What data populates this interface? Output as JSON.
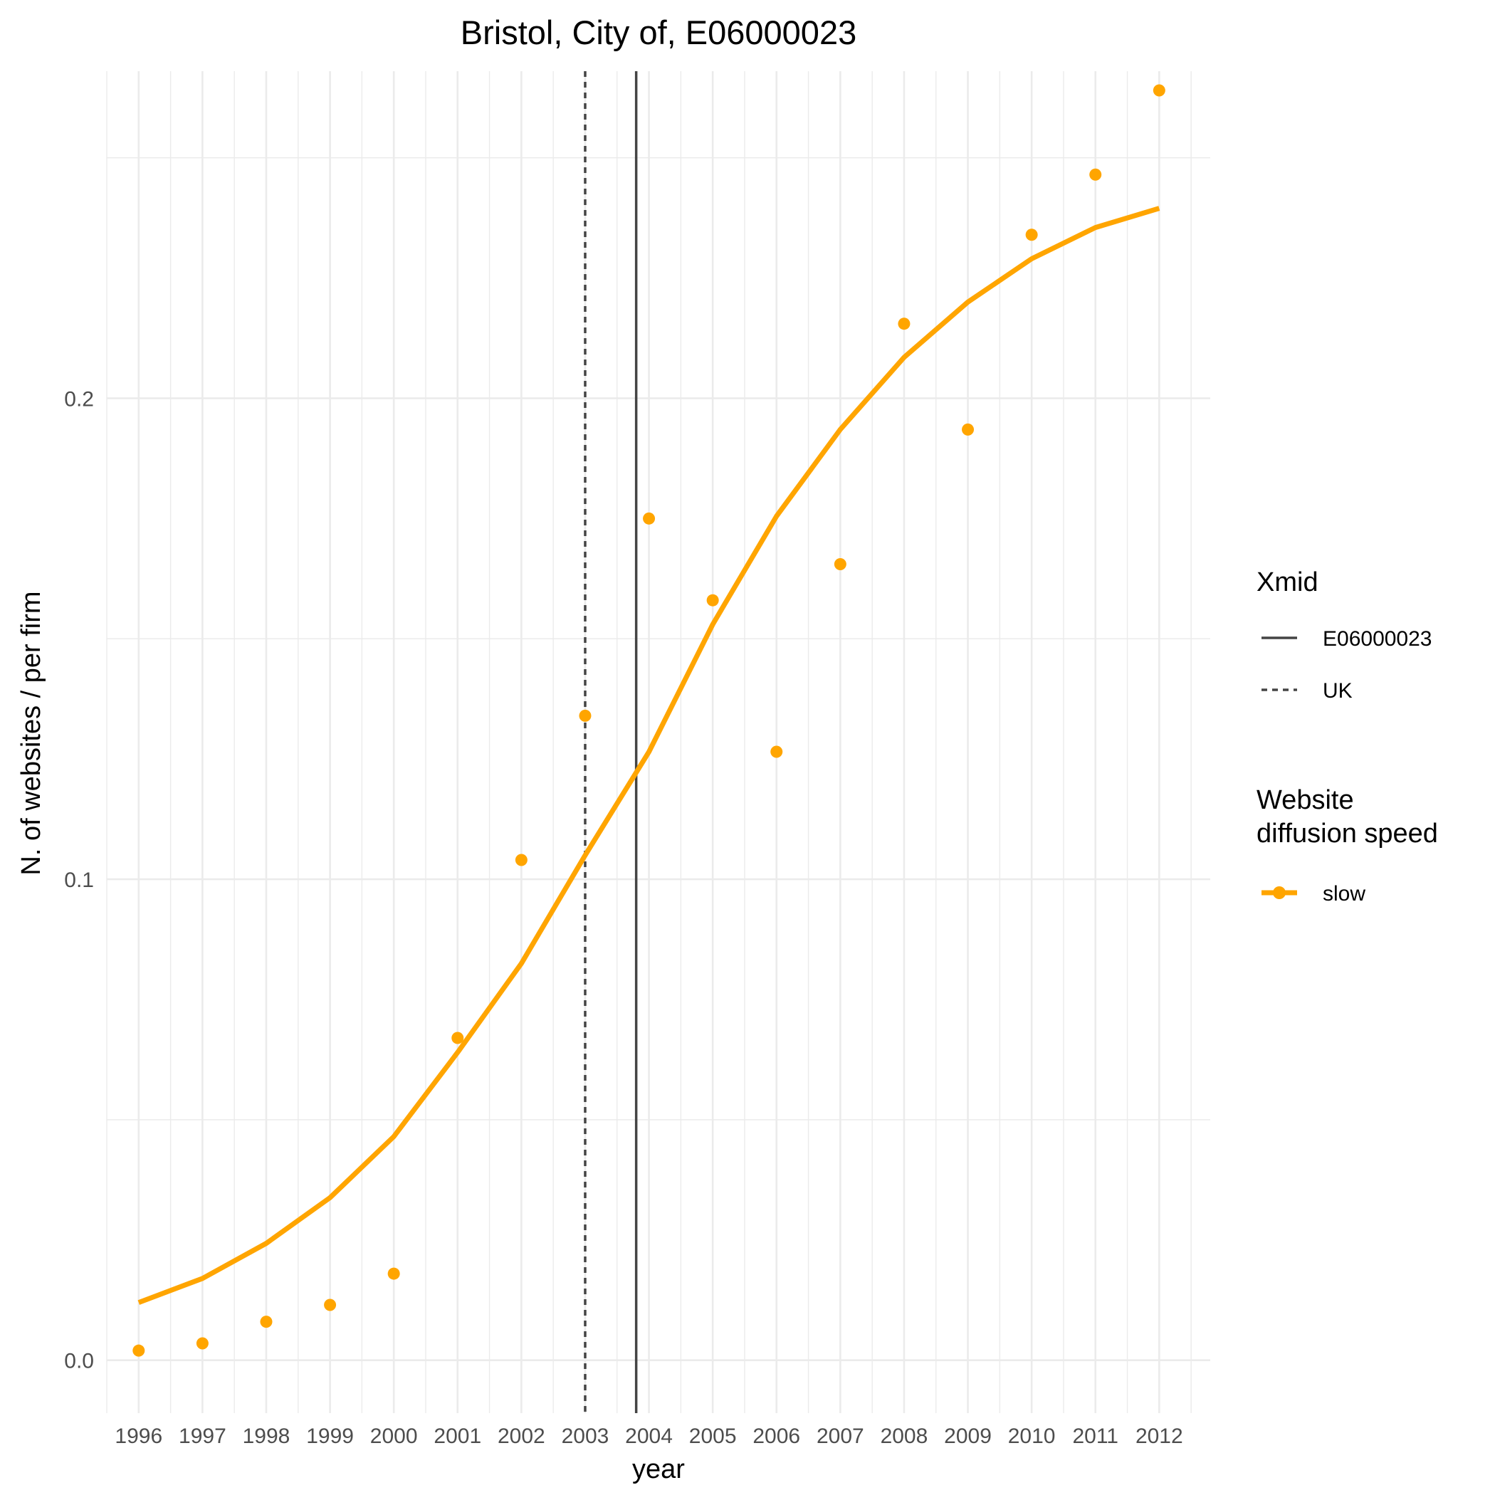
{
  "chart_data": {
    "type": "line",
    "title": "Bristol, City of, E06000023",
    "xlabel": "year",
    "ylabel": "N. of websites / per firm",
    "x": [
      1996,
      1997,
      1998,
      1999,
      2000,
      2001,
      2002,
      2003,
      2004,
      2005,
      2006,
      2007,
      2008,
      2009,
      2010,
      2011,
      2012
    ],
    "x_tick_labels": [
      "1996",
      "1997",
      "1998",
      "1999",
      "2000",
      "2001",
      "2002",
      "2003",
      "2004",
      "2005",
      "2006",
      "2007",
      "2008",
      "2009",
      "2010",
      "2011",
      "2012"
    ],
    "y_ticks": [
      0.0,
      0.1,
      0.2
    ],
    "y_tick_labels": [
      "0.0",
      "0.1",
      "0.2"
    ],
    "xlim": [
      1995.5,
      2012.8
    ],
    "ylim": [
      -0.011,
      0.268
    ],
    "grid": true,
    "series": [
      {
        "name": "slow",
        "color": "#FFA500",
        "points": [
          0.002,
          0.0035,
          0.008,
          0.0115,
          0.018,
          0.067,
          0.104,
          0.134,
          0.175,
          0.158,
          0.1265,
          0.1655,
          0.2155,
          0.1935,
          0.234,
          0.2465,
          0.264
        ],
        "fitted": [
          0.012,
          0.017,
          0.0243,
          0.0338,
          0.0465,
          0.064,
          0.0825,
          0.105,
          0.1265,
          0.153,
          0.1755,
          0.1935,
          0.2085,
          0.22,
          0.229,
          0.2355,
          0.2395
        ]
      }
    ],
    "vlines": [
      {
        "name": "E06000023",
        "x": 2003.8,
        "style": "solid",
        "color": "#444444"
      },
      {
        "name": "UK",
        "x": 2003.0,
        "style": "dashed",
        "color": "#444444"
      }
    ],
    "legend": {
      "placement": "right",
      "groups": [
        {
          "title": "Xmid",
          "items": [
            {
              "label": "E06000023",
              "style": "solid"
            },
            {
              "label": "UK",
              "style": "dashed"
            }
          ]
        },
        {
          "title": "Website diffusion speed",
          "title_lines": [
            "Website",
            "diffusion speed"
          ],
          "items": [
            {
              "label": "slow",
              "style": "point-line",
              "color": "#FFA500"
            }
          ]
        }
      ]
    }
  }
}
